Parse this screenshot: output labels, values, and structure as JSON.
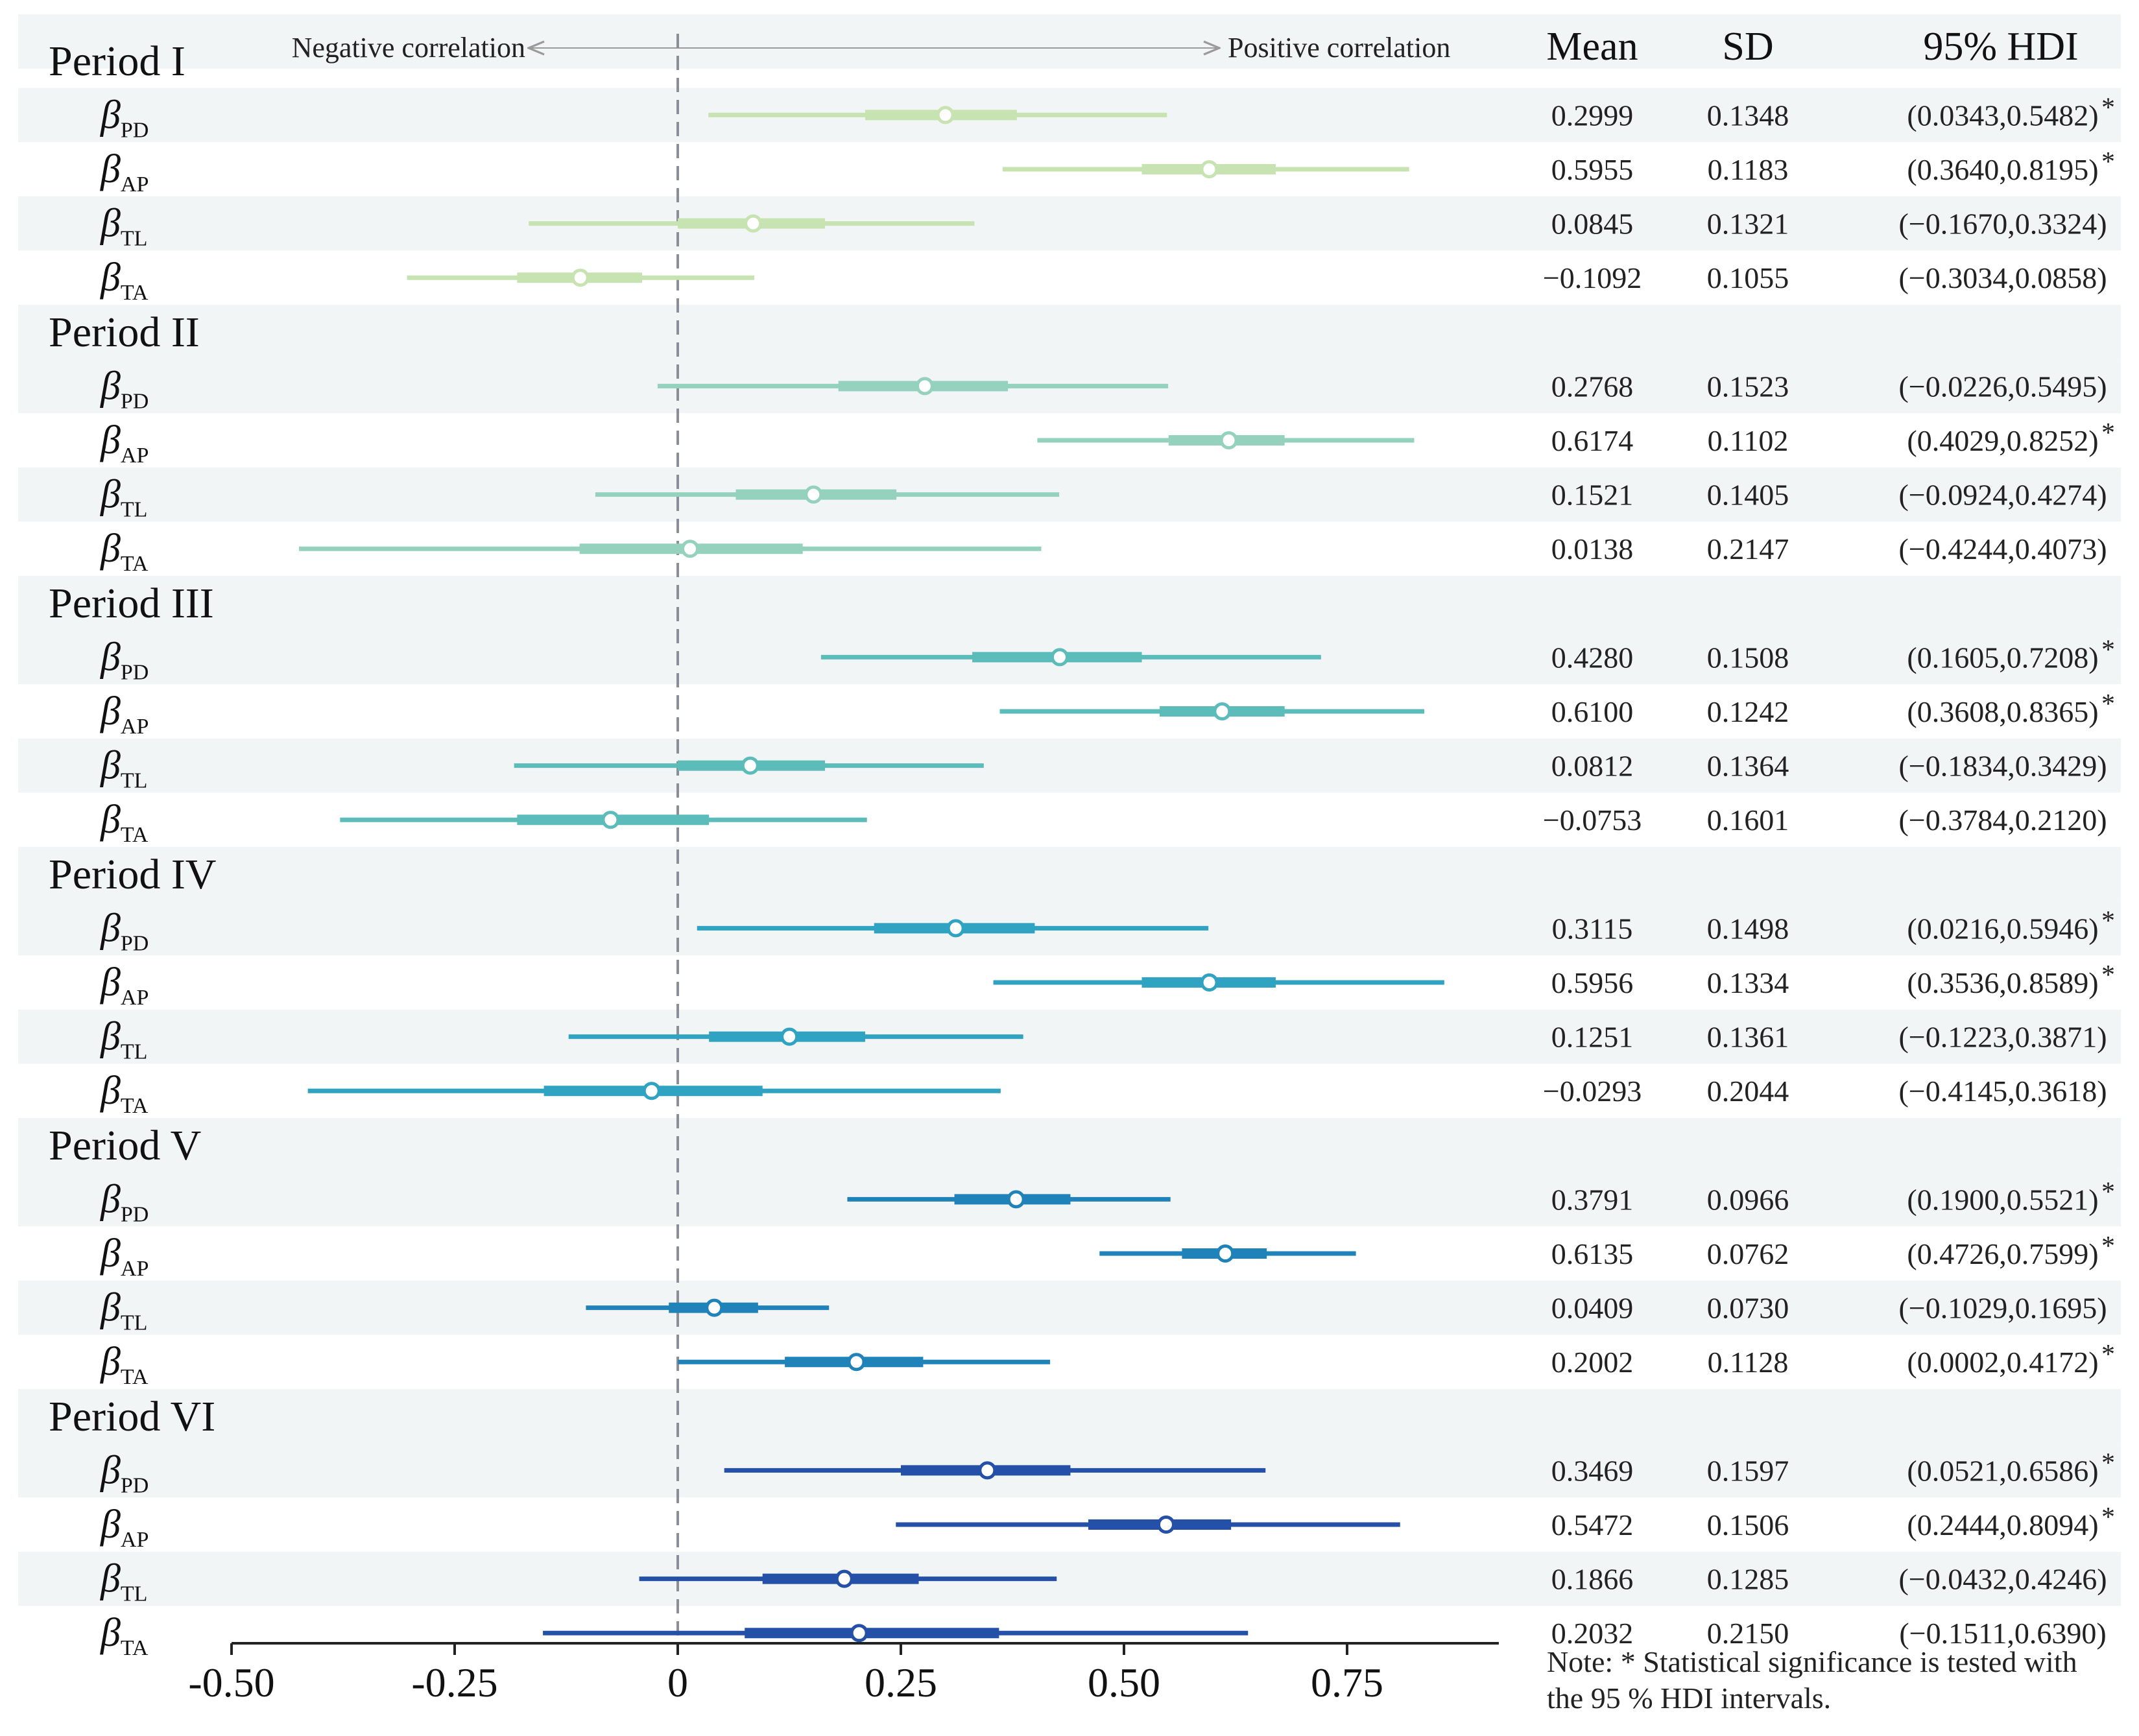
{
  "chart_data": {
    "type": "forest",
    "header": {
      "neg_label": "Negative correlation",
      "pos_label": "Positive correlation",
      "col_mean": "Mean",
      "col_sd": "SD",
      "col_hdi": "95% HDI"
    },
    "x_ticks": [
      {
        "value": -0.5,
        "label": "-0.50"
      },
      {
        "value": -0.25,
        "label": "-0.25"
      },
      {
        "value": 0,
        "label": "0"
      },
      {
        "value": 0.25,
        "label": "0.25"
      },
      {
        "value": 0.5,
        "label": "0.50"
      },
      {
        "value": 0.75,
        "label": "0.75"
      }
    ],
    "xlim": [
      -0.5,
      0.92
    ],
    "reference_line": 0,
    "note": "Note: * Statistical significance is tested with the 95 % HDI intervals.",
    "periods": [
      {
        "name": "Period I",
        "color": "#c8e3b2",
        "params": [
          {
            "symbol": "β",
            "sub": "PD",
            "mean": 0.2999,
            "sd": 0.1348,
            "hdi": [
              0.0343,
              0.5482
            ],
            "iqr": [
              0.21,
              0.38
            ],
            "mean_text": "0.2999",
            "sd_text": "0.1348",
            "hdi_text": "(0.0343,0.5482)",
            "sig": "*"
          },
          {
            "symbol": "β",
            "sub": "AP",
            "mean": 0.5955,
            "sd": 0.1183,
            "hdi": [
              0.364,
              0.8195
            ],
            "iqr": [
              0.52,
              0.67
            ],
            "mean_text": "0.5955",
            "sd_text": "0.1183",
            "hdi_text": "(0.3640,0.8195)",
            "sig": "*"
          },
          {
            "symbol": "β",
            "sub": "TL",
            "mean": 0.0845,
            "sd": 0.1321,
            "hdi": [
              -0.167,
              0.3324
            ],
            "iqr": [
              0.0,
              0.165
            ],
            "mean_text": "0.0845",
            "sd_text": "0.1321",
            "hdi_text": "(−0.1670,0.3324)",
            "sig": ""
          },
          {
            "symbol": "β",
            "sub": "TA",
            "mean": -0.1092,
            "sd": 0.1055,
            "hdi": [
              -0.3034,
              0.0858
            ],
            "iqr": [
              -0.18,
              -0.04
            ],
            "mean_text": "−0.1092",
            "sd_text": "0.1055",
            "hdi_text": "(−0.3034,0.0858)",
            "sig": ""
          }
        ]
      },
      {
        "name": "Period II",
        "color": "#95d2bd",
        "params": [
          {
            "symbol": "β",
            "sub": "PD",
            "mean": 0.2768,
            "sd": 0.1523,
            "hdi": [
              -0.0226,
              0.5495
            ],
            "iqr": [
              0.18,
              0.37
            ],
            "mean_text": "0.2768",
            "sd_text": "0.1523",
            "hdi_text": "(−0.0226,0.5495)",
            "sig": ""
          },
          {
            "symbol": "β",
            "sub": "AP",
            "mean": 0.6174,
            "sd": 0.1102,
            "hdi": [
              0.4029,
              0.8252
            ],
            "iqr": [
              0.55,
              0.68
            ],
            "mean_text": "0.6174",
            "sd_text": "0.1102",
            "hdi_text": "(0.4029,0.8252)",
            "sig": "*"
          },
          {
            "symbol": "β",
            "sub": "TL",
            "mean": 0.1521,
            "sd": 0.1405,
            "hdi": [
              -0.0924,
              0.4274
            ],
            "iqr": [
              0.065,
              0.245
            ],
            "mean_text": "0.1521",
            "sd_text": "0.1405",
            "hdi_text": "(−0.0924,0.4274)",
            "sig": ""
          },
          {
            "symbol": "β",
            "sub": "TA",
            "mean": 0.0138,
            "sd": 0.2147,
            "hdi": [
              -0.4244,
              0.4073
            ],
            "iqr": [
              -0.11,
              0.14
            ],
            "mean_text": "0.0138",
            "sd_text": "0.2147",
            "hdi_text": "(−0.4244,0.4073)",
            "sig": ""
          }
        ]
      },
      {
        "name": "Period III",
        "color": "#5bbcba",
        "params": [
          {
            "symbol": "β",
            "sub": "PD",
            "mean": 0.428,
            "sd": 0.1508,
            "hdi": [
              0.1605,
              0.7208
            ],
            "iqr": [
              0.33,
              0.52
            ],
            "mean_text": "0.4280",
            "sd_text": "0.1508",
            "hdi_text": "(0.1605,0.7208)",
            "sig": "*"
          },
          {
            "symbol": "β",
            "sub": "AP",
            "mean": 0.61,
            "sd": 0.1242,
            "hdi": [
              0.3608,
              0.8365
            ],
            "iqr": [
              0.54,
              0.68
            ],
            "mean_text": "0.6100",
            "sd_text": "0.1242",
            "hdi_text": "(0.3608,0.8365)",
            "sig": "*"
          },
          {
            "symbol": "β",
            "sub": "TL",
            "mean": 0.0812,
            "sd": 0.1364,
            "hdi": [
              -0.1834,
              0.3429
            ],
            "iqr": [
              0.0,
              0.165
            ],
            "mean_text": "0.0812",
            "sd_text": "0.1364",
            "hdi_text": "(−0.1834,0.3429)",
            "sig": ""
          },
          {
            "symbol": "β",
            "sub": "TA",
            "mean": -0.0753,
            "sd": 0.1601,
            "hdi": [
              -0.3784,
              0.212
            ],
            "iqr": [
              -0.18,
              0.035
            ],
            "mean_text": "−0.0753",
            "sd_text": "0.1601",
            "hdi_text": "(−0.3784,0.2120)",
            "sig": ""
          }
        ]
      },
      {
        "name": "Period IV",
        "color": "#2fa3c1",
        "params": [
          {
            "symbol": "β",
            "sub": "PD",
            "mean": 0.3115,
            "sd": 0.1498,
            "hdi": [
              0.0216,
              0.5946
            ],
            "iqr": [
              0.22,
              0.4
            ],
            "mean_text": "0.3115",
            "sd_text": "0.1498",
            "hdi_text": "(0.0216,0.5946)",
            "sig": "*"
          },
          {
            "symbol": "β",
            "sub": "AP",
            "mean": 0.5956,
            "sd": 0.1334,
            "hdi": [
              0.3536,
              0.8589
            ],
            "iqr": [
              0.52,
              0.67
            ],
            "mean_text": "0.5956",
            "sd_text": "0.1334",
            "hdi_text": "(0.3536,0.8589)",
            "sig": "*"
          },
          {
            "symbol": "β",
            "sub": "TL",
            "mean": 0.1251,
            "sd": 0.1361,
            "hdi": [
              -0.1223,
              0.3871
            ],
            "iqr": [
              0.035,
              0.21
            ],
            "mean_text": "0.1251",
            "sd_text": "0.1361",
            "hdi_text": "(−0.1223,0.3871)",
            "sig": ""
          },
          {
            "symbol": "β",
            "sub": "TA",
            "mean": -0.0293,
            "sd": 0.2044,
            "hdi": [
              -0.4145,
              0.3618
            ],
            "iqr": [
              -0.15,
              0.095
            ],
            "mean_text": "−0.0293",
            "sd_text": "0.2044",
            "hdi_text": "(−0.4145,0.3618)",
            "sig": ""
          }
        ]
      },
      {
        "name": "Period V",
        "color": "#1f82b8",
        "params": [
          {
            "symbol": "β",
            "sub": "PD",
            "mean": 0.3791,
            "sd": 0.0966,
            "hdi": [
              0.19,
              0.5521
            ],
            "iqr": [
              0.31,
              0.44
            ],
            "mean_text": "0.3791",
            "sd_text": "0.0966",
            "hdi_text": "(0.1900,0.5521)",
            "sig": "*"
          },
          {
            "symbol": "β",
            "sub": "AP",
            "mean": 0.6135,
            "sd": 0.0762,
            "hdi": [
              0.4726,
              0.7599
            ],
            "iqr": [
              0.565,
              0.66
            ],
            "mean_text": "0.6135",
            "sd_text": "0.0762",
            "hdi_text": "(0.4726,0.7599)",
            "sig": "*"
          },
          {
            "symbol": "β",
            "sub": "TL",
            "mean": 0.0409,
            "sd": 0.073,
            "hdi": [
              -0.1029,
              0.1695
            ],
            "iqr": [
              -0.01,
              0.09
            ],
            "mean_text": "0.0409",
            "sd_text": "0.0730",
            "hdi_text": "(−0.1029,0.1695)",
            "sig": ""
          },
          {
            "symbol": "β",
            "sub": "TA",
            "mean": 0.2002,
            "sd": 0.1128,
            "hdi": [
              0.0002,
              0.4172
            ],
            "iqr": [
              0.12,
              0.275
            ],
            "mean_text": "0.2002",
            "sd_text": "0.1128",
            "hdi_text": "(0.0002,0.4172)",
            "sig": "*"
          }
        ]
      },
      {
        "name": "Period VI",
        "color": "#2450a8",
        "params": [
          {
            "symbol": "β",
            "sub": "PD",
            "mean": 0.3469,
            "sd": 0.1597,
            "hdi": [
              0.0521,
              0.6586
            ],
            "iqr": [
              0.25,
              0.44
            ],
            "mean_text": "0.3469",
            "sd_text": "0.1597",
            "hdi_text": "(0.0521,0.6586)",
            "sig": "*"
          },
          {
            "symbol": "β",
            "sub": "AP",
            "mean": 0.5472,
            "sd": 0.1506,
            "hdi": [
              0.2444,
              0.8094
            ],
            "iqr": [
              0.46,
              0.62
            ],
            "mean_text": "0.5472",
            "sd_text": "0.1506",
            "hdi_text": "(0.2444,0.8094)",
            "sig": "*"
          },
          {
            "symbol": "β",
            "sub": "TL",
            "mean": 0.1866,
            "sd": 0.1285,
            "hdi": [
              -0.0432,
              0.4246
            ],
            "iqr": [
              0.095,
              0.27
            ],
            "mean_text": "0.1866",
            "sd_text": "0.1285",
            "hdi_text": "(−0.0432,0.4246)",
            "sig": ""
          },
          {
            "symbol": "β",
            "sub": "TA",
            "mean": 0.2032,
            "sd": 0.215,
            "hdi": [
              -0.1511,
              0.639
            ],
            "iqr": [
              0.075,
              0.36
            ],
            "mean_text": "0.2032",
            "sd_text": "0.2150",
            "hdi_text": "(−0.1511,0.6390)",
            "sig": ""
          }
        ]
      }
    ]
  }
}
